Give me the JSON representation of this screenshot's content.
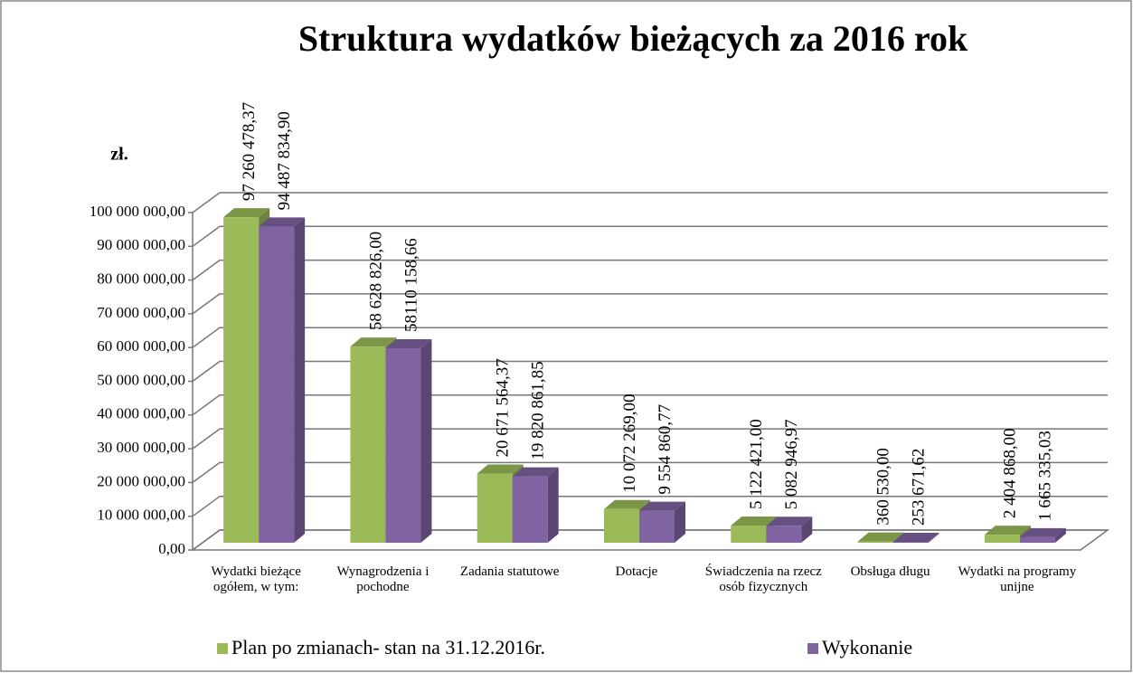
{
  "chart_data": {
    "type": "bar3d",
    "title": "Struktura wydatków bieżących za 2016 rok",
    "y_axis_label": "zł.",
    "categories": [
      "Wydatki bieżące ogółem, w tym:",
      "Wynagrodzenia i pochodne",
      "Zadania statutowe",
      "Dotacje",
      "Świadczenia na rzecz osób fizycznych",
      "Obsługa długu",
      "Wydatki na programy unijne"
    ],
    "series": [
      {
        "name": "Plan po zmianach- stan na 31.12.2016r.",
        "color": "#9bbb59",
        "values": [
          97260478.37,
          58628826.0,
          20671564.37,
          10072269.0,
          5122421.0,
          360530.0,
          2404868.0
        ],
        "value_labels": [
          "97 260 478,37",
          "58 628 826,00",
          "20 671 564,37",
          "10 072 269,00",
          "5 122 421,00",
          "360 530,00",
          "2 404 868,00"
        ]
      },
      {
        "name": "Wykonanie",
        "color": "#8064a2",
        "values": [
          94487834.9,
          58110158.66,
          19820861.85,
          9554860.77,
          5082946.97,
          253671.62,
          1665335.03
        ],
        "value_labels": [
          "94 487 834,90",
          "58110 158,66",
          "19 820 861,85",
          "9 554 860,77",
          "5 082 946,97",
          "253 671,62",
          "1 665 335,03"
        ]
      }
    ],
    "ylim": [
      0,
      100000000
    ],
    "yticks": [
      {
        "value": 0,
        "label": "0,00"
      },
      {
        "value": 10000000,
        "label": "10 000 000,00"
      },
      {
        "value": 20000000,
        "label": "20 000 000,00"
      },
      {
        "value": 30000000,
        "label": "30 000 000,00"
      },
      {
        "value": 40000000,
        "label": "40 000 000,00"
      },
      {
        "value": 50000000,
        "label": "50 000 000,00"
      },
      {
        "value": 60000000,
        "label": "60 000 000,00"
      },
      {
        "value": 70000000,
        "label": "70 000 000,00"
      },
      {
        "value": 80000000,
        "label": "80 000 000,00"
      },
      {
        "value": 90000000,
        "label": "90 000 000,00"
      },
      {
        "value": 100000000,
        "label": "100 000 000,00"
      }
    ],
    "grid": true,
    "legend": "bottom"
  }
}
